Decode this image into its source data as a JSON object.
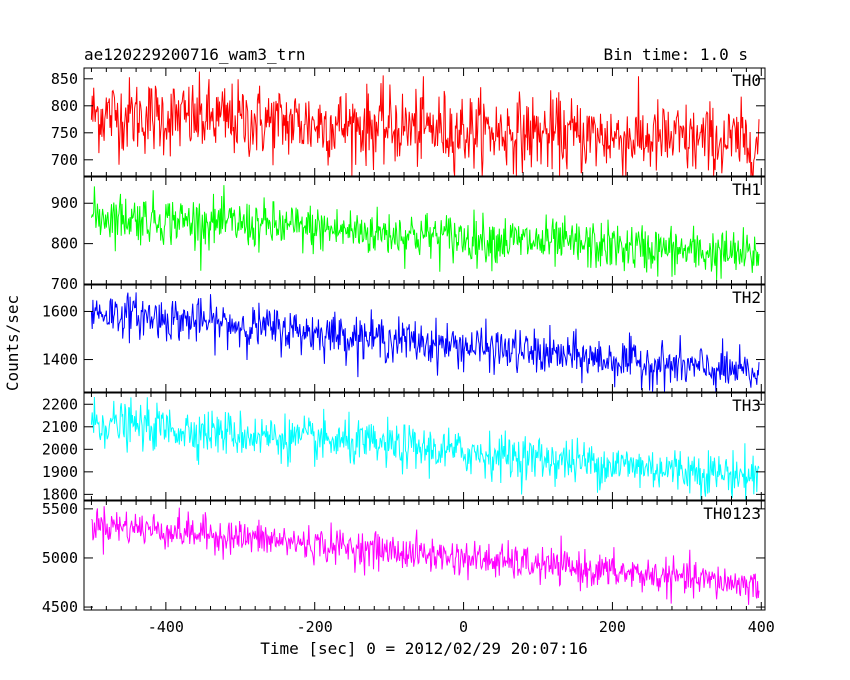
{
  "title_left": "ae120229200716_wam3_trn",
  "title_right": "Bin time: 1.0 s",
  "xlabel": "Time [sec] 0 = 2012/02/29 20:07:16",
  "ylabel": "Counts/sec",
  "chart_data": {
    "type": "line",
    "x_range": [
      -510,
      405
    ],
    "x_ticks": [
      -400,
      -200,
      0,
      200,
      400
    ],
    "x_sample": {
      "start": -500,
      "end": 397,
      "step": 1
    },
    "series": [
      {
        "name": "TH0",
        "color": "#ff0000",
        "ylim": [
          670,
          870
        ],
        "yticks": [
          700,
          750,
          800,
          850
        ],
        "trend": [
          785,
          730
        ],
        "noise": 35
      },
      {
        "name": "TH1",
        "color": "#00ff00",
        "ylim": [
          700,
          965
        ],
        "yticks": [
          700,
          800,
          900
        ],
        "trend": [
          870,
          770
        ],
        "noise": 30
      },
      {
        "name": "TH2",
        "color": "#0000ff",
        "ylim": [
          1265,
          1710
        ],
        "yticks": [
          1400,
          1600
        ],
        "trend": [
          1600,
          1340
        ],
        "noise": 45
      },
      {
        "name": "TH3",
        "color": "#00ffff",
        "ylim": [
          1775,
          2250
        ],
        "yticks": [
          1800,
          1900,
          2000,
          2100,
          2200
        ],
        "trend": [
          2120,
          1880
        ],
        "noise": 50
      },
      {
        "name": "TH0123",
        "color": "#ff00ff",
        "ylim": [
          4470,
          5580
        ],
        "yticks": [
          4500,
          5000,
          5500
        ],
        "trend": [
          5350,
          4720
        ],
        "noise": 90
      }
    ]
  }
}
